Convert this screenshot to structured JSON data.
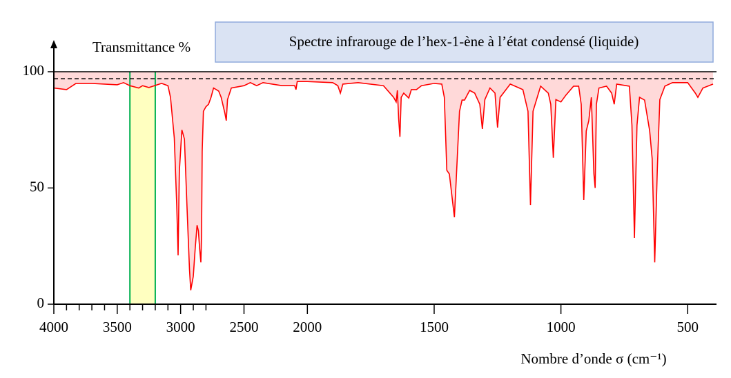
{
  "chart_data": {
    "type": "line",
    "title": "Spectre infrarouge de l’hex-1-ène à l’état condensé (liquide)",
    "y_label": "Transmittance %",
    "x_label": "Nombre d’onde σ (cm⁻¹)",
    "xlim": [
      4000,
      400
    ],
    "ylim": [
      0,
      100
    ],
    "x_scale_break": 2000,
    "xticks": [
      4000,
      3500,
      3000,
      2500,
      2000,
      1500,
      1000,
      500
    ],
    "xminorticks": [
      3900,
      3800,
      3700,
      3600,
      3400,
      3300,
      3200,
      3100,
      2900,
      2800
    ],
    "yticks": [
      0,
      50,
      100
    ],
    "highlight": [
      3400,
      3200
    ],
    "reference_line": 97,
    "series": [
      {
        "name": "hex-1-ène",
        "color": "#ff0000",
        "x": [
          4000,
          3900,
          3825,
          3700,
          3500,
          3450,
          3400,
          3330,
          3300,
          3250,
          3150,
          3100,
          3080,
          3050,
          3030,
          3020,
          3010,
          2990,
          2970,
          2950,
          2930,
          2920,
          2900,
          2885,
          2870,
          2860,
          2850,
          2840,
          2835,
          2830,
          2820,
          2800,
          2780,
          2760,
          2740,
          2700,
          2680,
          2650,
          2640,
          2630,
          2600,
          2500,
          2450,
          2400,
          2350,
          2200,
          2100,
          2090,
          2080,
          2000,
          1900,
          1880,
          1870,
          1860,
          1800,
          1700,
          1660,
          1650,
          1645,
          1640,
          1635,
          1630,
          1620,
          1600,
          1590,
          1570,
          1550,
          1500,
          1470,
          1460,
          1450,
          1440,
          1420,
          1400,
          1390,
          1380,
          1360,
          1340,
          1320,
          1310,
          1300,
          1280,
          1260,
          1250,
          1240,
          1200,
          1150,
          1130,
          1120,
          1110,
          1080,
          1050,
          1040,
          1030,
          1020,
          1000,
          980,
          950,
          930,
          920,
          910,
          900,
          890,
          880,
          870,
          865,
          860,
          850,
          820,
          800,
          790,
          780,
          730,
          720,
          710,
          700,
          690,
          670,
          650,
          640,
          630,
          620,
          610,
          590,
          560,
          500,
          470,
          460,
          440,
          400
        ],
        "values": [
          93,
          92.3,
          95,
          95,
          94.4,
          95.3,
          94,
          93,
          94,
          93.2,
          95,
          94,
          89,
          71.5,
          42,
          21,
          57,
          75,
          71,
          42.7,
          15,
          6,
          12,
          24,
          34,
          31.5,
          24,
          18,
          30,
          65.6,
          83,
          85,
          86,
          89,
          93,
          91.7,
          89,
          82,
          79,
          88,
          93,
          94,
          95.3,
          94,
          95.3,
          94,
          94,
          92.3,
          95.8,
          95.8,
          95.3,
          94,
          90.8,
          94.7,
          95.3,
          94,
          89,
          87,
          92,
          80,
          72,
          89,
          90.8,
          88.7,
          92.3,
          92.3,
          94,
          95,
          94.7,
          89,
          57.6,
          56,
          37.4,
          83,
          87.8,
          87.8,
          92,
          90.8,
          86,
          75.4,
          88,
          93,
          90.8,
          76,
          89,
          94.7,
          92.3,
          83,
          42.7,
          83,
          93.8,
          90.8,
          86,
          63,
          88,
          87,
          90,
          93.8,
          93.8,
          86,
          44.8,
          74.5,
          79,
          89,
          56,
          50,
          86,
          93,
          93.8,
          90.8,
          86,
          94.7,
          93.8,
          77,
          28.5,
          77,
          89,
          87.8,
          74.5,
          62.6,
          18,
          57.6,
          88,
          93.8,
          95.3,
          95.3,
          90.8,
          89,
          93,
          94.7
        ]
      }
    ]
  }
}
